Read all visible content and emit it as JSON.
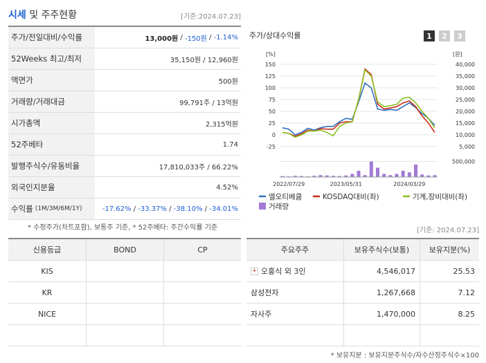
{
  "left": {
    "title_main": "시세",
    "title_rest": " 및 주주현황",
    "date": "[기준:2024.07.23]",
    "rows": [
      {
        "label": "주가/전일대비/수익률",
        "value": [
          {
            "text": "13,000원",
            "color": "#222222",
            "bold": true
          },
          {
            "text": " / "
          },
          {
            "text": "-150원",
            "color": "#1a5fd0"
          },
          {
            "text": " / "
          },
          {
            "text": "-1.14%",
            "color": "#1a5fd0"
          }
        ]
      },
      {
        "label": "52Weeks 최고/최저",
        "value": [
          {
            "text": "35,150원 / 12,960원"
          }
        ]
      },
      {
        "label": "액면가",
        "value": [
          {
            "text": "500원"
          }
        ]
      },
      {
        "label": "거래량/거래대금",
        "value": [
          {
            "text": "99,791주 / 13억원"
          }
        ]
      },
      {
        "label": "시가총액",
        "value": [
          {
            "text": "2,315억원"
          }
        ]
      },
      {
        "label": "52주베타",
        "value": [
          {
            "text": "1.74"
          }
        ]
      },
      {
        "label": "발행주식수/유동비율",
        "value": [
          {
            "text": "17,810,033주 / 66.22%"
          }
        ]
      },
      {
        "label": "외국인지분율",
        "value": [
          {
            "text": "4.52%"
          }
        ]
      },
      {
        "label": "수익률",
        "label_sub": "(1M/3M/6M/1Y)",
        "value": [
          {
            "text": "-17.62%",
            "color": "#1a5fd0"
          },
          {
            "text": " / "
          },
          {
            "text": "-33.37%",
            "color": "#1a5fd0"
          },
          {
            "text": " / "
          },
          {
            "text": "-38.10%",
            "color": "#1a5fd0"
          },
          {
            "text": " / "
          },
          {
            "text": "-34.01%",
            "color": "#1a5fd0"
          }
        ]
      }
    ],
    "note": "* 수정주가(차트포함), 보통주 기준, * 52주베타: 주간수익률 기준"
  },
  "chart_data": {
    "type": "line",
    "title": "주가/상대수익률",
    "buttons": [
      "1",
      "2",
      "3"
    ],
    "y_unit": "[%]",
    "y2_unit": "[원]",
    "categories": [
      null,
      "2022/07/29",
      null,
      null,
      null,
      null,
      null,
      null,
      null,
      null,
      "2023/05/31",
      null,
      null,
      null,
      null,
      null,
      null,
      null,
      null,
      null,
      "2024/03/29",
      null,
      null,
      null,
      null
    ],
    "ylim": [
      -25,
      150
    ],
    "yticks": [
      150,
      125,
      100,
      75,
      50,
      25,
      0,
      -25
    ],
    "y2lim": [
      5000,
      40000
    ],
    "y2ticks": [
      {
        "value": 40000,
        "label": "40,000"
      },
      {
        "value": 35000,
        "label": "35,000"
      },
      {
        "value": 30000,
        "label": "30,000"
      },
      {
        "value": 25000,
        "label": "25,000"
      },
      {
        "value": 20000,
        "label": "20,000"
      },
      {
        "value": 15000,
        "label": "15,000"
      },
      {
        "value": 10000,
        "label": "10,000"
      },
      {
        "value": 5000,
        "label": "5,000"
      }
    ],
    "series": [
      {
        "name": "엘오티베큠",
        "color": "#2e6fc0",
        "axis": "y2",
        "values": [
          13000,
          12400,
          10000,
          11000,
          12800,
          12000,
          13000,
          13600,
          13600,
          15600,
          17000,
          16600,
          24000,
          32000,
          30000,
          21000,
          20400,
          20800,
          20400,
          22000,
          23600,
          21600,
          19000,
          17000,
          14000
        ]
      },
      {
        "name": "KOSDAQ대비(좌)",
        "color": "#cc2a1a",
        "values": [
          5,
          3,
          -3,
          2,
          10,
          8,
          13,
          12,
          12,
          25,
          28,
          28,
          75,
          140,
          128,
          65,
          55,
          57,
          60,
          68,
          72,
          60,
          40,
          25,
          5
        ]
      },
      {
        "name": "기계,장비대비(좌)",
        "color": "#8cc020",
        "values": [
          5,
          3,
          -5,
          0,
          8,
          8,
          10,
          5,
          -2,
          18,
          25,
          28,
          75,
          138,
          125,
          70,
          60,
          62,
          65,
          78,
          80,
          68,
          50,
          35,
          15
        ]
      }
    ],
    "volume": {
      "name": "거래량",
      "color": "#a27ad6",
      "ylim": [
        0,
        600000
      ],
      "yticks": [
        {
          "value": 500000,
          "label": "500,000"
        }
      ],
      "values": [
        30000,
        20000,
        40000,
        30000,
        20000,
        40000,
        60000,
        50000,
        40000,
        30000,
        50000,
        100000,
        200000,
        60000,
        500000,
        300000,
        100000,
        60000,
        100000,
        200000,
        150000,
        400000,
        80000,
        50000,
        60000
      ]
    }
  },
  "bottom": {
    "date": "[기준: 2024.07.23]",
    "credit": {
      "header": [
        "신용등급",
        "BOND",
        "CP"
      ],
      "rows": [
        [
          "KIS",
          null,
          null
        ],
        [
          "KR",
          null,
          null
        ],
        [
          "NICE",
          null,
          null
        ],
        [
          null,
          null,
          null
        ]
      ]
    },
    "holders": {
      "header": [
        "주요주주",
        "보유주식수(보통)",
        "보유지분(%)"
      ],
      "rows": [
        [
          "오홍식 외 3인",
          "4,546,017",
          "25.53"
        ],
        [
          "삼성전자",
          "1,267,668",
          "7.12"
        ],
        [
          "자사주",
          "1,470,000",
          "8.25"
        ],
        [
          null,
          null,
          null
        ]
      ]
    },
    "note": "* 보유지분 : 보유지분주식수/자수산정주식수×100"
  }
}
